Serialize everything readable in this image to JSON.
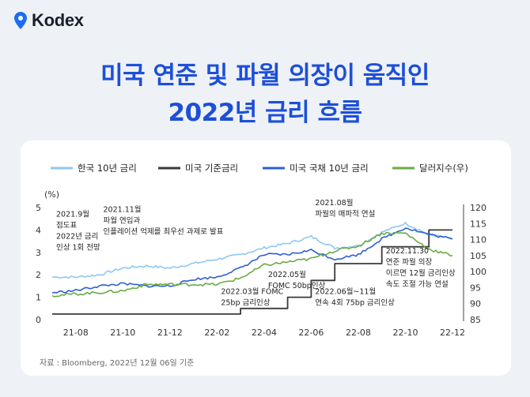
{
  "brand": {
    "name": "Kodex",
    "accent": "#1d6cf5"
  },
  "header": {
    "title_line1": "미국 연준 및 파월 의장이 움직인",
    "title_line2": "2022년 금리 흐름"
  },
  "colors": {
    "title": "#1d4fd7",
    "page_bg": "#eef2f7"
  },
  "chart_data": {
    "type": "line",
    "title": "",
    "xlabel": "",
    "ylabel": "(%)",
    "left_axis": {
      "ticks": [
        0,
        1,
        2,
        3,
        4,
        5
      ],
      "ylim": [
        0,
        5
      ]
    },
    "right_axis": {
      "ticks": [
        85,
        90,
        95,
        100,
        105,
        110,
        115,
        120
      ],
      "ylim": [
        85,
        120
      ]
    },
    "x_ticks": [
      "21-08",
      "21-10",
      "21-12",
      "22-02",
      "22-04",
      "22-06",
      "22-08",
      "22-10",
      "22-12"
    ],
    "x_range_months": [
      "2021-07",
      "2022-12"
    ],
    "grid": false,
    "legend_position": "top",
    "series": [
      {
        "name": "한국 10년 금리",
        "axis": "left",
        "color": "#8ec8f2",
        "months": [
          "2021-07",
          "2021-08",
          "2021-09",
          "2021-10",
          "2021-11",
          "2021-12",
          "2022-01",
          "2022-02",
          "2022-03",
          "2022-04",
          "2022-05",
          "2022-06",
          "2022-07",
          "2022-08",
          "2022-09",
          "2022-10",
          "2022-11",
          "2022-12"
        ],
        "values": [
          1.9,
          1.9,
          2.0,
          2.3,
          2.4,
          2.3,
          2.5,
          2.7,
          2.9,
          3.2,
          3.4,
          3.7,
          3.2,
          3.3,
          3.9,
          4.3,
          3.8,
          3.6
        ]
      },
      {
        "name": "미국 기준금리",
        "axis": "left",
        "color": "#3a3a3a",
        "step": true,
        "months": [
          "2021-07",
          "2022-03",
          "2022-05",
          "2022-06",
          "2022-07",
          "2022-09",
          "2022-11",
          "2022-12"
        ],
        "values": [
          0.25,
          0.5,
          1.0,
          1.75,
          2.5,
          3.25,
          4.0,
          4.0
        ]
      },
      {
        "name": "미국 국채 10년 금리",
        "axis": "left",
        "color": "#2f5fd6",
        "months": [
          "2021-07",
          "2021-08",
          "2021-09",
          "2021-10",
          "2021-11",
          "2021-12",
          "2022-01",
          "2022-02",
          "2022-03",
          "2022-04",
          "2022-05",
          "2022-06",
          "2022-07",
          "2022-08",
          "2022-09",
          "2022-10",
          "2022-11",
          "2022-12"
        ],
        "values": [
          1.2,
          1.3,
          1.5,
          1.6,
          1.5,
          1.5,
          1.8,
          1.9,
          2.3,
          2.9,
          2.9,
          3.1,
          2.7,
          2.9,
          3.6,
          4.1,
          3.8,
          3.6
        ]
      },
      {
        "name": "달러지수(우)",
        "axis": "right",
        "color": "#6aab46",
        "months": [
          "2021-07",
          "2021-08",
          "2021-09",
          "2021-10",
          "2021-11",
          "2021-12",
          "2022-01",
          "2022-02",
          "2022-03",
          "2022-04",
          "2022-05",
          "2022-06",
          "2022-07",
          "2022-08",
          "2022-09",
          "2022-10",
          "2022-11",
          "2022-12"
        ],
        "values": [
          92.5,
          93,
          93.5,
          94,
          96,
          96,
          96,
          96,
          98,
          102,
          103,
          104,
          106.5,
          108,
          112,
          112,
          107,
          105
        ]
      }
    ],
    "annotations": [
      {
        "month": "2021-07",
        "value": 4.6,
        "lines": [
          "2021.9월",
          "점도표",
          "2022년 금리",
          "인상 1회 전망"
        ]
      },
      {
        "month": "2021-09",
        "value": 4.8,
        "lines": [
          "2021.11월",
          "파월 연임과",
          "인플레이션 억제를 최우선 과제로 발표"
        ]
      },
      {
        "month": "2022-02",
        "value": 1.15,
        "lines": [
          "2022.03월 FOMC",
          "25bp 금리인상"
        ]
      },
      {
        "month": "2022-04",
        "value": 1.9,
        "lines": [
          "2022.05월",
          "FOMC 50bp인상"
        ]
      },
      {
        "month": "2022-06",
        "value": 5.1,
        "lines": [
          "2021.08월",
          "파월의 매파적 연설"
        ]
      },
      {
        "month": "2022-06",
        "value": 1.15,
        "lines": [
          "2022.06월~11월",
          "연속 4회 75bp 금리인상"
        ]
      },
      {
        "month": "2022-09",
        "value": 2.95,
        "lines": [
          "2022.11.30",
          "연준 파월 의장",
          "이르면 12월 금리인상",
          "속도 조절 가능 연설"
        ]
      }
    ]
  },
  "source_note": "자료 : Bloomberg, 2022년 12월 06일 기준"
}
